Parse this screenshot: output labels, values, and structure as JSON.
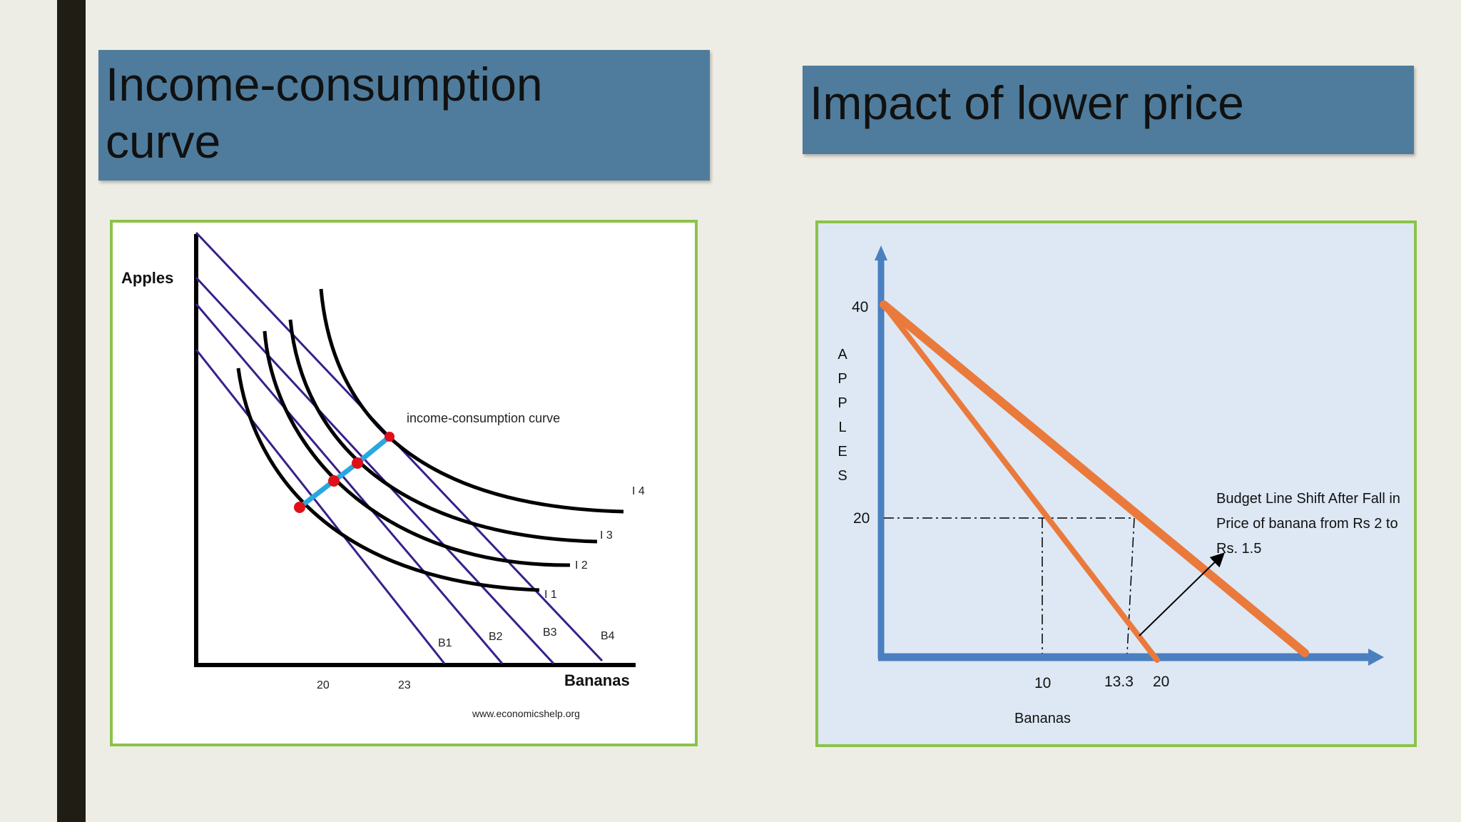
{
  "slide": {
    "left_title": "Income-consumption\ncurve",
    "right_title": "Impact of lower price"
  },
  "left_figure": {
    "y_axis_label": "Apples",
    "x_axis_label": "Bananas",
    "curve_annotation": "income-consumption curve",
    "indifference_curves": [
      "I 1",
      "I 2",
      "I 3",
      "I 4"
    ],
    "budget_lines": [
      "B1",
      "B2",
      "B3",
      "B4"
    ],
    "x_ticks": [
      "20",
      "23"
    ],
    "source": "www.economicshelp.org",
    "colors": {
      "budget": "#3a1f8c",
      "icc": "#29a8e0",
      "points": "#e0101a"
    }
  },
  "right_figure": {
    "y_axis_label": "APPLES",
    "x_axis_label": "Bananas",
    "y_ticks": [
      "40",
      "20"
    ],
    "x_ticks": [
      "10",
      "13.3",
      "20"
    ],
    "annotation_lines": [
      "Budget Line Shift After Fall in",
      "Price of banana from Rs 2 to",
      "Rs. 1.5"
    ],
    "colors": {
      "axis": "#4a7fc0",
      "budget": "#ea7a3c"
    }
  }
}
